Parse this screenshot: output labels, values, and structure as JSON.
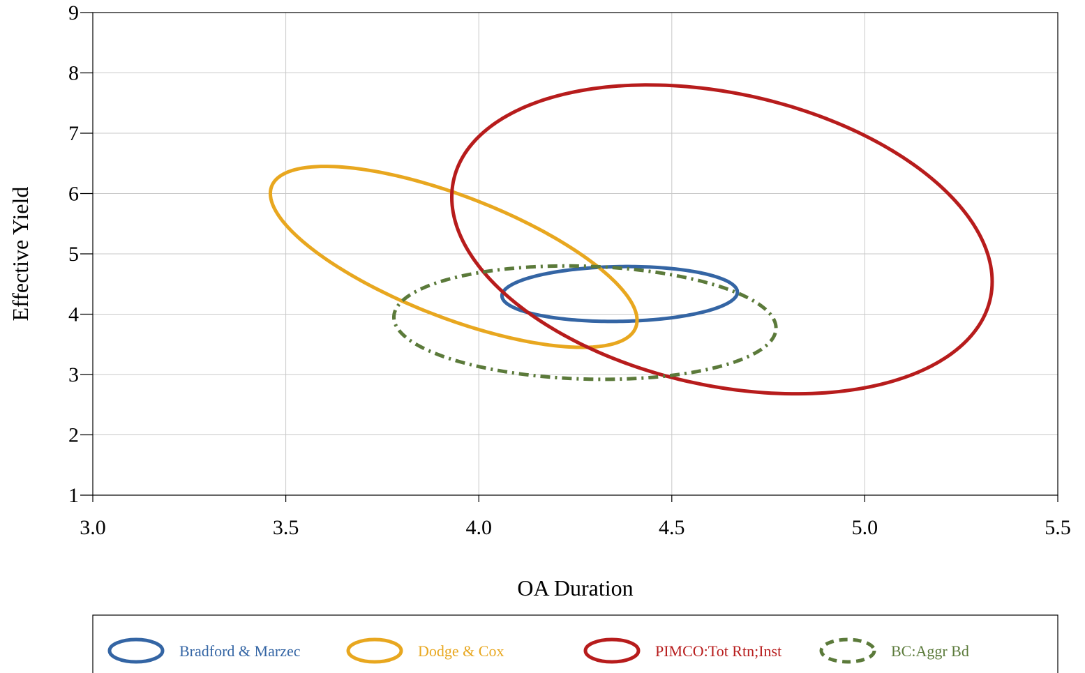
{
  "chart_data": {
    "type": "scatter",
    "title": "",
    "xlabel": "OA Duration",
    "ylabel": "Effective Yield",
    "xlim": [
      3.0,
      5.5
    ],
    "ylim": [
      1,
      9
    ],
    "x_ticks": [
      "3.0",
      "3.5",
      "4.0",
      "4.5",
      "5.0",
      "5.5"
    ],
    "y_ticks": [
      "1",
      "2",
      "3",
      "4",
      "5",
      "6",
      "7",
      "8",
      "9"
    ],
    "grid": true,
    "legend_position": "bottom",
    "series": [
      {
        "name": "Bradford & Marzec",
        "color": "#3465a4",
        "line_style": "solid",
        "ellipse": {
          "x_min": 4.06,
          "x_max": 4.67,
          "y_min": 3.88,
          "y_max": 4.79,
          "leftmost_y": 4.3,
          "rightmost_y": 4.36
        }
      },
      {
        "name": "Dodge & Cox",
        "color": "#e8a71f",
        "line_style": "solid",
        "ellipse": {
          "x_min": 3.46,
          "x_max": 4.41,
          "y_min": 3.45,
          "y_max": 6.45,
          "leftmost_y": 6.0,
          "rightmost_y": 3.9
        }
      },
      {
        "name": "PIMCO:Tot Rtn;Inst",
        "color": "#b71c1c",
        "line_style": "solid",
        "ellipse": {
          "x_min": 3.93,
          "x_max": 5.33,
          "y_min": 2.68,
          "y_max": 7.8,
          "leftmost_y": 5.95,
          "rightmost_y": 4.55
        }
      },
      {
        "name": "BC:Aggr Bd",
        "color": "#5b7a3a",
        "line_style": "dashed",
        "ellipse": {
          "x_min": 3.78,
          "x_max": 4.77,
          "y_min": 2.92,
          "y_max": 4.8,
          "leftmost_y": 3.97,
          "rightmost_y": 3.79
        }
      }
    ]
  }
}
